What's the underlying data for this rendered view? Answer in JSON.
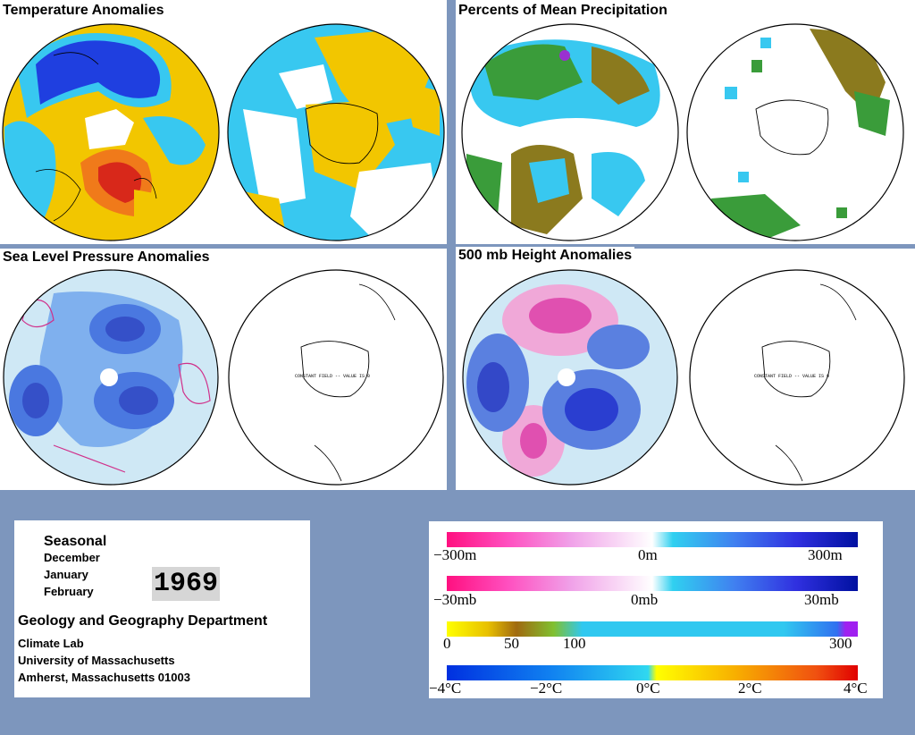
{
  "panels": {
    "temperature": {
      "title": "Temperature Anomalies"
    },
    "precipitation": {
      "title": "Percents of Mean Precipitation"
    },
    "slp": {
      "title": "Sea Level Pressure Anomalies",
      "constant_field_note": "CONSTANT FIELD -- VALUE IS 0"
    },
    "height500": {
      "title": "500 mb Height Anomalies",
      "constant_field_note": "CONSTANT FIELD -- VALUE IS 0"
    }
  },
  "info": {
    "season": "Seasonal",
    "months": [
      "December",
      "January",
      "February"
    ],
    "year": "1969",
    "department": "Geology and Geography Department",
    "lines": [
      "Climate Lab",
      "University of Massachusetts",
      "Amherst, Massachusetts 01003"
    ]
  },
  "legend": {
    "height": {
      "labels": [
        "−300m",
        "0m",
        "300m"
      ]
    },
    "pressure": {
      "labels": [
        "−30mb",
        "0mb",
        "30mb"
      ]
    },
    "precip": {
      "labels": [
        "0",
        "50",
        "100",
        "300"
      ]
    },
    "temp": {
      "labels": [
        "−4°C",
        "−2°C",
        "0°C",
        "2°C",
        "4°C"
      ]
    }
  },
  "colors": {
    "background": "#7d96bd",
    "temp_warm": "#f5c800",
    "temp_cold": "#1f3fe0",
    "temp_cool": "#33ccf0",
    "temp_hot": "#e8321a",
    "precip_dry": "#8b7a1e",
    "precip_wet": "#3a9c3a",
    "slp_low": "#3a6ee0",
    "slp_high": "#e070c0",
    "height_high": "#e050b0",
    "height_low": "#2a3ed0"
  }
}
